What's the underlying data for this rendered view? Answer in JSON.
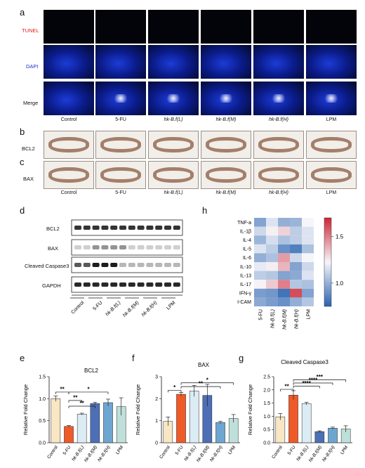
{
  "panels": {
    "a": {
      "label": "a",
      "rows": [
        "TUNEL",
        "DAPI",
        "Merge"
      ],
      "columns": [
        "Control",
        "5-FU",
        "hk-B.f(L)",
        "hk-B.f(M)",
        "hk-B.f(H)",
        "LPM"
      ]
    },
    "b": {
      "label": "b",
      "row": "BCL2"
    },
    "c": {
      "label": "c",
      "row": "BAX",
      "columns": [
        "Control",
        "5-FU",
        "hk-B.f(L)",
        "hk-B.f(M)",
        "hk-B.f(H)",
        "LPM"
      ]
    },
    "d": {
      "label": "d",
      "rows": [
        "BCL2",
        "BAX",
        "Cleaved Caspase3",
        "GAPDH"
      ],
      "groups": [
        "Control",
        "5-FU",
        "hk-B.f(L)",
        "hk-B.f(M)",
        "hk-B.f(H)",
        "LPM"
      ]
    },
    "h": {
      "label": "h"
    },
    "e": {
      "label": "e"
    },
    "f": {
      "label": "f"
    },
    "g": {
      "label": "g"
    }
  },
  "colors": {
    "tunel_label": "#e0201b",
    "dapi_label": "#1b2fd0",
    "bars": [
      "#f8e6c4",
      "#ef5a28",
      "#dcecf4",
      "#4c6fb6",
      "#6ea6d2",
      "#bfe0da"
    ]
  },
  "chart_data": [
    {
      "type": "heatmap",
      "rows": [
        "TNF-a",
        "IL-1β",
        "IL-4",
        "IL-5",
        "IL-6",
        "IL-10",
        "IL-13",
        "IL-17",
        "IFN-γ",
        "I-CAM"
      ],
      "columns": [
        "5-FU",
        "hk-B.f(L)",
        "hk-B.f(M)",
        "hk-B.f(H)",
        "LPM"
      ],
      "values": [
        [
          0.86,
          0.97,
          0.88,
          0.89,
          1.0
        ],
        [
          0.95,
          1.02,
          1.12,
          0.93,
          0.97
        ],
        [
          0.89,
          0.96,
          0.91,
          0.93,
          0.97
        ],
        [
          0.97,
          0.93,
          0.83,
          0.8,
          0.91
        ],
        [
          0.88,
          0.91,
          1.3,
          0.95,
          1.0
        ],
        [
          0.98,
          1.03,
          1.22,
          0.86,
          0.95
        ],
        [
          0.93,
          0.92,
          0.86,
          0.87,
          0.97
        ],
        [
          1.01,
          1.15,
          1.4,
          0.92,
          0.91
        ],
        [
          0.85,
          0.84,
          0.78,
          1.57,
          0.86
        ],
        [
          0.87,
          0.85,
          0.83,
          0.88,
          0.92
        ]
      ],
      "colorbar": {
        "ticks": [
          "1.5",
          "1.0"
        ],
        "tick_values": [
          1.5,
          1.0
        ],
        "range": [
          0.75,
          1.7
        ]
      }
    },
    {
      "type": "bar",
      "title": "BCL2",
      "ylabel": "Relative Fold Change",
      "categories": [
        "Control",
        "5-FU",
        "hk-B.f(L)",
        "hk-B.f(M)",
        "hk-B.f(H)",
        "LPM"
      ],
      "values": [
        1.0,
        0.37,
        0.65,
        0.89,
        0.91,
        0.82
      ],
      "errors": [
        0.06,
        0.02,
        0.02,
        0.03,
        0.08,
        0.2
      ],
      "ylim": [
        0,
        1.5
      ],
      "yticks": [
        "0.0",
        "0.5",
        "1.0",
        "1.5"
      ],
      "sig": [
        {
          "label": "**",
          "from": 0,
          "to": 1,
          "level": 1.15
        },
        {
          "label": "*",
          "from": 1,
          "to": 4,
          "level": 1.15
        },
        {
          "label": "**",
          "from": 1,
          "to": 2,
          "level": 0.96
        },
        {
          "label": "**",
          "from": 1,
          "to": 3,
          "level": 0.83
        }
      ]
    },
    {
      "type": "bar",
      "title": "BAX",
      "ylabel": "Relative Fold Change",
      "categories": [
        "Control",
        "5-FU",
        "hk-B.f(L)",
        "hk-B.f(M)",
        "hk-B.f(H)",
        "LPM"
      ],
      "values": [
        0.97,
        2.2,
        2.35,
        2.15,
        0.92,
        1.1
      ],
      "errors": [
        0.2,
        0.08,
        0.25,
        0.5,
        0.05,
        0.18
      ],
      "ylim": [
        0,
        3
      ],
      "yticks": [
        "0",
        "1",
        "2",
        "3"
      ],
      "sig": [
        {
          "label": "*",
          "from": 0,
          "to": 1,
          "level": 2.38
        },
        {
          "label": "*",
          "from": 1,
          "to": 5,
          "level": 2.72
        },
        {
          "label": "**",
          "from": 1,
          "to": 4,
          "level": 2.55
        }
      ]
    },
    {
      "type": "bar",
      "title": "Cleaved Caspase3",
      "ylabel": "Relative Fold Change",
      "categories": [
        "Control",
        "5-FU",
        "hk-B.f(L)",
        "hk-B.f(M)",
        "hk-B.f(H)",
        "LPM"
      ],
      "values": [
        0.98,
        1.8,
        1.48,
        0.42,
        0.55,
        0.52
      ],
      "errors": [
        0.12,
        0.17,
        0.05,
        0.03,
        0.04,
        0.12
      ],
      "ylim": [
        0,
        2.5
      ],
      "yticks": [
        "0.0",
        "0.5",
        "1.0",
        "1.5",
        "2.0",
        "2.5"
      ],
      "sig": [
        {
          "label": "**",
          "from": 0,
          "to": 1,
          "level": 2.02
        },
        {
          "label": "***",
          "from": 1,
          "to": 5,
          "level": 2.38
        },
        {
          "label": "****",
          "from": 1,
          "to": 4,
          "level": 2.26
        },
        {
          "label": "****",
          "from": 1,
          "to": 3,
          "level": 2.14
        }
      ]
    }
  ]
}
